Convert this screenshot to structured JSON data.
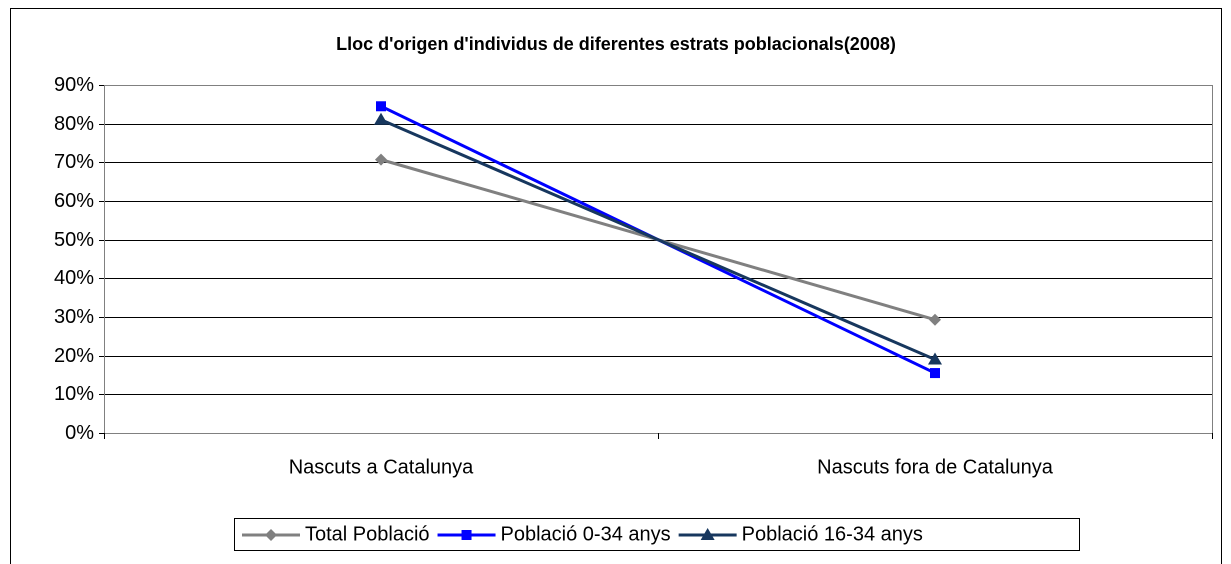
{
  "chart_data": {
    "type": "line",
    "title": "Lloc d'origen d'individus de diferentes estrats poblacionals(2008)",
    "categories": [
      "Nascuts a Catalunya",
      "Nascuts fora de Catalunya"
    ],
    "series": [
      {
        "name": "Total Població",
        "color": "#808080",
        "marker": "diamond",
        "values": [
          70.7,
          29.3
        ]
      },
      {
        "name": "Població 0-34 anys",
        "color": "#0000ff",
        "marker": "square",
        "values": [
          84.5,
          15.5
        ]
      },
      {
        "name": "Població 16-34 anys",
        "color": "#17375e",
        "marker": "triangle",
        "values": [
          81,
          19
        ]
      }
    ],
    "ylim": [
      0,
      90
    ],
    "yticks": [
      {
        "value": 0,
        "label": "0%"
      },
      {
        "value": 10,
        "label": "10%"
      },
      {
        "value": 20,
        "label": "20%"
      },
      {
        "value": 30,
        "label": "30%"
      },
      {
        "value": 40,
        "label": "40%"
      },
      {
        "value": 50,
        "label": "50%"
      },
      {
        "value": 60,
        "label": "60%"
      },
      {
        "value": 70,
        "label": "70%"
      },
      {
        "value": 80,
        "label": "80%"
      },
      {
        "value": 90,
        "label": "90%"
      }
    ],
    "grid": true,
    "legend": "bottom"
  }
}
